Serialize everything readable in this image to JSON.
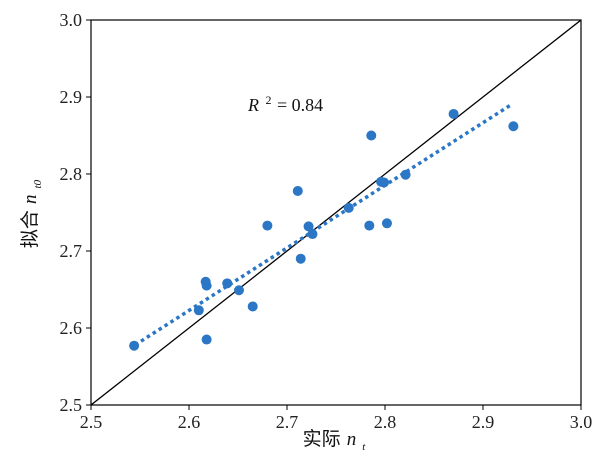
{
  "chart_data": {
    "type": "scatter",
    "xlabel": "实际",
    "xlabel_var": "n",
    "xlabel_sub": "t",
    "ylabel": "拟合",
    "ylabel_var": "n",
    "ylabel_sub": "t0",
    "xlim": [
      2.5,
      3.0
    ],
    "ylim": [
      2.5,
      3.0
    ],
    "xticks": [
      "2.5",
      "2.6",
      "2.7",
      "2.8",
      "2.9",
      "3.0"
    ],
    "yticks": [
      "2.5",
      "2.6",
      "2.7",
      "2.8",
      "2.9",
      "3.0"
    ],
    "grid": false,
    "annotation": {
      "var": "R",
      "sup": "2",
      "text": "= 0.84"
    },
    "point_color": "#2b77c5",
    "trend_color": "#2b77c5",
    "identity_line_color": "#000000",
    "points": [
      {
        "x": 2.544,
        "y": 2.577
      },
      {
        "x": 2.61,
        "y": 2.623
      },
      {
        "x": 2.617,
        "y": 2.66
      },
      {
        "x": 2.618,
        "y": 2.655
      },
      {
        "x": 2.618,
        "y": 2.585
      },
      {
        "x": 2.639,
        "y": 2.658
      },
      {
        "x": 2.651,
        "y": 2.649
      },
      {
        "x": 2.665,
        "y": 2.628
      },
      {
        "x": 2.68,
        "y": 2.733
      },
      {
        "x": 2.711,
        "y": 2.778
      },
      {
        "x": 2.714,
        "y": 2.69
      },
      {
        "x": 2.722,
        "y": 2.732
      },
      {
        "x": 2.726,
        "y": 2.722
      },
      {
        "x": 2.763,
        "y": 2.756
      },
      {
        "x": 2.784,
        "y": 2.733
      },
      {
        "x": 2.786,
        "y": 2.85
      },
      {
        "x": 2.796,
        "y": 2.79
      },
      {
        "x": 2.799,
        "y": 2.789
      },
      {
        "x": 2.802,
        "y": 2.736
      },
      {
        "x": 2.821,
        "y": 2.799
      },
      {
        "x": 2.87,
        "y": 2.878
      },
      {
        "x": 2.931,
        "y": 2.862
      }
    ],
    "trendline": {
      "style": "dotted",
      "x": [
        2.545,
        2.93
      ],
      "y": [
        2.578,
        2.891
      ]
    },
    "identity_line": {
      "x": [
        2.5,
        3.0
      ],
      "y": [
        2.5,
        3.0
      ]
    }
  }
}
